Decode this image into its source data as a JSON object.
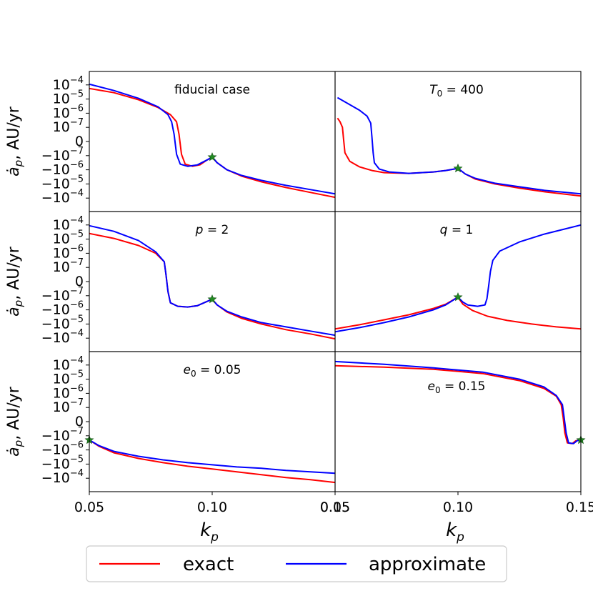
{
  "chart_data": {
    "type": "line",
    "layout": "3x2 grid of panels, shared axes",
    "xlabel": "k_p",
    "ylabel": "ȧ_p, AU/yr",
    "xlim": [
      0.05,
      0.15
    ],
    "x_ticks": [
      0.05,
      0.1,
      0.15
    ],
    "x_tick_labels": [
      "0.05",
      "0.10",
      "0.15"
    ],
    "y_scale": "symlog",
    "y_ticks": [
      4,
      3,
      2,
      1,
      0,
      -1,
      -2,
      -3,
      -4
    ],
    "y_tick_labels": [
      {
        "base": "10",
        "exp": "−4"
      },
      {
        "base": "10",
        "exp": "−5"
      },
      {
        "base": "10",
        "exp": "−6"
      },
      {
        "base": "10",
        "exp": "−7"
      },
      {
        "base": "0",
        "exp": ""
      },
      {
        "base": "−10",
        "exp": "−7"
      },
      {
        "base": "−10",
        "exp": "−6"
      },
      {
        "base": "−10",
        "exp": "−5"
      },
      {
        "base": "−10",
        "exp": "−4"
      }
    ],
    "legend": {
      "placement": "bottom-center",
      "entries": [
        {
          "name": "exact",
          "color": "#ff0000"
        },
        {
          "name": "approximate",
          "color": "#0000ff"
        }
      ]
    },
    "marker": {
      "shape": "star",
      "color": "#228b22"
    },
    "panels": [
      {
        "annotation": {
          "sym": "",
          "sub": "",
          "text": "fiducial case"
        },
        "ann_pos": "top-center",
        "marker_xy": [
          0.1,
          -1.1
        ],
        "series": [
          {
            "name": "exact",
            "points": [
              [
                0.05,
                3.75
              ],
              [
                0.06,
                3.45
              ],
              [
                0.07,
                2.95
              ],
              [
                0.078,
                2.4
              ],
              [
                0.083,
                1.9
              ],
              [
                0.0855,
                1.4
              ],
              [
                0.0865,
                0.5
              ],
              [
                0.0875,
                -0.9
              ],
              [
                0.089,
                -1.6
              ],
              [
                0.092,
                -1.75
              ],
              [
                0.095,
                -1.65
              ],
              [
                0.098,
                -1.3
              ],
              [
                0.1,
                -1.1
              ],
              [
                0.102,
                -1.5
              ],
              [
                0.106,
                -2.0
              ],
              [
                0.112,
                -2.45
              ],
              [
                0.12,
                -2.85
              ],
              [
                0.13,
                -3.25
              ],
              [
                0.14,
                -3.6
              ],
              [
                0.15,
                -3.95
              ]
            ]
          },
          {
            "name": "approximate",
            "points": [
              [
                0.05,
                4.05
              ],
              [
                0.06,
                3.6
              ],
              [
                0.07,
                3.05
              ],
              [
                0.078,
                2.45
              ],
              [
                0.082,
                1.9
              ],
              [
                0.0835,
                1.4
              ],
              [
                0.0845,
                0.5
              ],
              [
                0.0855,
                -0.9
              ],
              [
                0.087,
                -1.6
              ],
              [
                0.09,
                -1.75
              ],
              [
                0.094,
                -1.65
              ],
              [
                0.098,
                -1.3
              ],
              [
                0.1,
                -1.1
              ],
              [
                0.102,
                -1.5
              ],
              [
                0.106,
                -2.0
              ],
              [
                0.112,
                -2.4
              ],
              [
                0.12,
                -2.75
              ],
              [
                0.13,
                -3.1
              ],
              [
                0.14,
                -3.4
              ],
              [
                0.15,
                -3.7
              ]
            ]
          }
        ]
      },
      {
        "annotation": {
          "sym": "T",
          "sub": "0",
          "text": " = 400"
        },
        "ann_pos": "top-center",
        "marker_xy": [
          0.1,
          -1.9
        ],
        "series": [
          {
            "name": "exact",
            "points": [
              [
                0.051,
                1.65
              ],
              [
                0.052,
                1.4
              ],
              [
                0.053,
                1.0
              ],
              [
                0.0535,
                0.1
              ],
              [
                0.054,
                -0.8
              ],
              [
                0.056,
                -1.4
              ],
              [
                0.06,
                -1.8
              ],
              [
                0.065,
                -2.05
              ],
              [
                0.07,
                -2.2
              ],
              [
                0.08,
                -2.25
              ],
              [
                0.09,
                -2.15
              ],
              [
                0.095,
                -2.05
              ],
              [
                0.1,
                -1.9
              ],
              [
                0.103,
                -2.3
              ],
              [
                0.107,
                -2.65
              ],
              [
                0.115,
                -3.0
              ],
              [
                0.125,
                -3.3
              ],
              [
                0.135,
                -3.55
              ],
              [
                0.15,
                -3.85
              ]
            ]
          },
          {
            "name": "approximate",
            "points": [
              [
                0.051,
                3.1
              ],
              [
                0.055,
                2.7
              ],
              [
                0.06,
                2.2
              ],
              [
                0.063,
                1.8
              ],
              [
                0.0645,
                1.3
              ],
              [
                0.065,
                0.3
              ],
              [
                0.0655,
                -0.8
              ],
              [
                0.066,
                -1.5
              ],
              [
                0.068,
                -1.95
              ],
              [
                0.072,
                -2.15
              ],
              [
                0.08,
                -2.25
              ],
              [
                0.09,
                -2.15
              ],
              [
                0.095,
                -2.05
              ],
              [
                0.1,
                -1.9
              ],
              [
                0.103,
                -2.3
              ],
              [
                0.107,
                -2.6
              ],
              [
                0.115,
                -2.95
              ],
              [
                0.125,
                -3.2
              ],
              [
                0.135,
                -3.45
              ],
              [
                0.15,
                -3.7
              ]
            ]
          }
        ]
      },
      {
        "annotation": {
          "sym": "p",
          "sub": "",
          "text": " = 2"
        },
        "ann_pos": "top-center",
        "marker_xy": [
          0.1,
          -1.25
        ],
        "series": [
          {
            "name": "exact",
            "points": [
              [
                0.05,
                3.4
              ],
              [
                0.06,
                3.05
              ],
              [
                0.07,
                2.55
              ],
              [
                0.077,
                2.0
              ],
              [
                0.0805,
                1.4
              ],
              [
                0.0812,
                0.5
              ],
              [
                0.082,
                -0.7
              ],
              [
                0.083,
                -1.5
              ],
              [
                0.086,
                -1.75
              ],
              [
                0.09,
                -1.8
              ],
              [
                0.094,
                -1.7
              ],
              [
                0.098,
                -1.4
              ],
              [
                0.1,
                -1.25
              ],
              [
                0.102,
                -1.65
              ],
              [
                0.106,
                -2.15
              ],
              [
                0.112,
                -2.6
              ],
              [
                0.12,
                -3.0
              ],
              [
                0.13,
                -3.4
              ],
              [
                0.14,
                -3.7
              ],
              [
                0.15,
                -4.05
              ]
            ]
          },
          {
            "name": "approximate",
            "points": [
              [
                0.05,
                3.95
              ],
              [
                0.06,
                3.55
              ],
              [
                0.07,
                2.9
              ],
              [
                0.077,
                2.1
              ],
              [
                0.0805,
                1.4
              ],
              [
                0.0812,
                0.5
              ],
              [
                0.082,
                -0.7
              ],
              [
                0.083,
                -1.5
              ],
              [
                0.086,
                -1.75
              ],
              [
                0.09,
                -1.8
              ],
              [
                0.094,
                -1.7
              ],
              [
                0.098,
                -1.4
              ],
              [
                0.1,
                -1.25
              ],
              [
                0.102,
                -1.65
              ],
              [
                0.106,
                -2.1
              ],
              [
                0.112,
                -2.5
              ],
              [
                0.12,
                -2.9
              ],
              [
                0.13,
                -3.2
              ],
              [
                0.14,
                -3.5
              ],
              [
                0.15,
                -3.8
              ]
            ]
          }
        ]
      },
      {
        "annotation": {
          "sym": "q",
          "sub": "",
          "text": " = 1"
        },
        "ann_pos": "top-center",
        "marker_xy": [
          0.1,
          -1.1
        ],
        "series": [
          {
            "name": "exact",
            "points": [
              [
                0.05,
                -3.35
              ],
              [
                0.06,
                -3.05
              ],
              [
                0.07,
                -2.7
              ],
              [
                0.08,
                -2.35
              ],
              [
                0.09,
                -1.9
              ],
              [
                0.095,
                -1.6
              ],
              [
                0.1,
                -1.1
              ],
              [
                0.102,
                -1.6
              ],
              [
                0.106,
                -2.05
              ],
              [
                0.112,
                -2.45
              ],
              [
                0.12,
                -2.75
              ],
              [
                0.13,
                -3.0
              ],
              [
                0.14,
                -3.2
              ],
              [
                0.15,
                -3.35
              ]
            ]
          },
          {
            "name": "approximate",
            "points": [
              [
                0.05,
                -3.55
              ],
              [
                0.06,
                -3.25
              ],
              [
                0.07,
                -2.9
              ],
              [
                0.08,
                -2.5
              ],
              [
                0.09,
                -2.0
              ],
              [
                0.095,
                -1.65
              ],
              [
                0.1,
                -1.1
              ],
              [
                0.102,
                -1.45
              ],
              [
                0.104,
                -1.65
              ],
              [
                0.108,
                -1.75
              ],
              [
                0.111,
                -1.65
              ],
              [
                0.1118,
                -1.2
              ],
              [
                0.1125,
                -0.3
              ],
              [
                0.1132,
                0.7
              ],
              [
                0.1142,
                1.5
              ],
              [
                0.117,
                2.15
              ],
              [
                0.125,
                2.8
              ],
              [
                0.135,
                3.35
              ],
              [
                0.15,
                4.0
              ]
            ]
          }
        ]
      },
      {
        "annotation": {
          "sym": "e",
          "sub": "0",
          "text": " = 0.05"
        },
        "ann_pos": "top-center",
        "marker_xy": [
          0.05,
          -1.3
        ],
        "series": [
          {
            "name": "exact",
            "points": [
              [
                0.05,
                -1.3
              ],
              [
                0.054,
                -1.75
              ],
              [
                0.06,
                -2.2
              ],
              [
                0.07,
                -2.6
              ],
              [
                0.08,
                -2.9
              ],
              [
                0.09,
                -3.15
              ],
              [
                0.1,
                -3.35
              ],
              [
                0.11,
                -3.55
              ],
              [
                0.12,
                -3.75
              ],
              [
                0.13,
                -3.95
              ],
              [
                0.14,
                -4.1
              ],
              [
                0.15,
                -4.3
              ]
            ]
          },
          {
            "name": "approximate",
            "points": [
              [
                0.05,
                -1.3
              ],
              [
                0.054,
                -1.7
              ],
              [
                0.06,
                -2.1
              ],
              [
                0.07,
                -2.45
              ],
              [
                0.08,
                -2.7
              ],
              [
                0.09,
                -2.9
              ],
              [
                0.1,
                -3.05
              ],
              [
                0.11,
                -3.2
              ],
              [
                0.12,
                -3.3
              ],
              [
                0.13,
                -3.45
              ],
              [
                0.14,
                -3.55
              ],
              [
                0.15,
                -3.65
              ]
            ]
          }
        ]
      },
      {
        "annotation": {
          "sym": "e",
          "sub": "0",
          "text": " = 0.15"
        },
        "ann_pos": "center",
        "marker_xy": [
          0.15,
          -1.3
        ],
        "series": [
          {
            "name": "exact",
            "points": [
              [
                0.05,
                3.95
              ],
              [
                0.07,
                3.85
              ],
              [
                0.09,
                3.7
              ],
              [
                0.11,
                3.4
              ],
              [
                0.125,
                2.9
              ],
              [
                0.135,
                2.35
              ],
              [
                0.14,
                1.8
              ],
              [
                0.142,
                1.2
              ],
              [
                0.1428,
                0.3
              ],
              [
                0.1435,
                -0.8
              ],
              [
                0.1445,
                -1.5
              ],
              [
                0.1465,
                -1.55
              ],
              [
                0.148,
                -1.35
              ],
              [
                0.15,
                -1.3
              ]
            ]
          },
          {
            "name": "approximate",
            "points": [
              [
                0.05,
                4.25
              ],
              [
                0.07,
                4.05
              ],
              [
                0.09,
                3.8
              ],
              [
                0.11,
                3.5
              ],
              [
                0.125,
                3.0
              ],
              [
                0.135,
                2.45
              ],
              [
                0.14,
                1.85
              ],
              [
                0.1425,
                1.2
              ],
              [
                0.1432,
                0.3
              ],
              [
                0.144,
                -0.8
              ],
              [
                0.145,
                -1.5
              ],
              [
                0.147,
                -1.55
              ],
              [
                0.1485,
                -1.35
              ],
              [
                0.15,
                -1.3
              ]
            ]
          }
        ]
      }
    ]
  }
}
